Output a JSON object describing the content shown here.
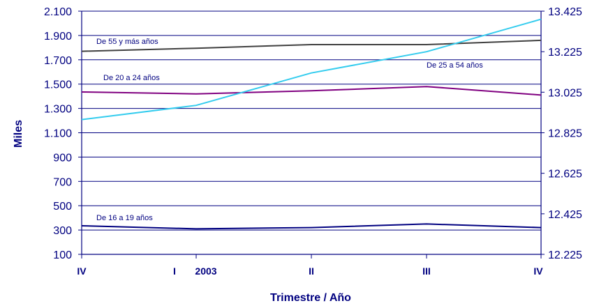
{
  "chart_data": {
    "type": "line",
    "xlabel": "Trimestre / Año",
    "ylabel": "Miles",
    "categories": [
      "IV",
      "I",
      "II",
      "III",
      "IV"
    ],
    "year_label": "2003",
    "ylim_left": [
      100,
      2100
    ],
    "ylim_right": [
      12225,
      13425
    ],
    "left_ticks": [
      "100",
      "300",
      "500",
      "700",
      "900",
      "1.100",
      "1.300",
      "1.500",
      "1.700",
      "1.900",
      "2.100"
    ],
    "right_ticks": [
      "12.225",
      "12.425",
      "12.625",
      "12.825",
      "13.025",
      "13.225",
      "13.425"
    ],
    "grid": true,
    "series": [
      {
        "name": "De 55 y más años",
        "axis": "left",
        "color": "#404040",
        "values": [
          1770,
          1795,
          1825,
          1825,
          1860
        ]
      },
      {
        "name": "De 20 a 24 años",
        "axis": "left",
        "color": "#800080",
        "values": [
          1435,
          1420,
          1445,
          1480,
          1410
        ]
      },
      {
        "name": "De 16 a 19 años",
        "axis": "left",
        "color": "#000080",
        "values": [
          335,
          310,
          320,
          350,
          320
        ]
      },
      {
        "name": "De 25 a 54 años",
        "axis": "right",
        "color": "#33CCEE",
        "values": [
          12890,
          12960,
          13120,
          13225,
          13385
        ]
      }
    ]
  }
}
